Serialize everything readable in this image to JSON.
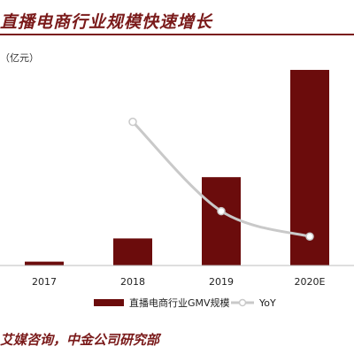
{
  "header": {
    "title": "直播电商行业规模快速增长",
    "unit_label": "（亿元）"
  },
  "footer": {
    "source": "艾媒咨询，中金公司研究部"
  },
  "colors": {
    "bar": "#6b0c0c",
    "line": "#c9c9c9",
    "accent": "#7a1a1a"
  },
  "chart_data": {
    "type": "bar",
    "categories": [
      "2017",
      "2018",
      "2019",
      "2020E"
    ],
    "series": [
      {
        "name": "直播电商行业GMV规模",
        "kind": "bar",
        "values": [
          190,
          1330,
          4340,
          9610
        ]
      },
      {
        "name": "YoY",
        "kind": "line",
        "values": [
          null,
          6.0,
          2.27,
          1.21
        ]
      }
    ],
    "ylim": [
      0,
      10000
    ],
    "y2lim": [
      0,
      8.5
    ],
    "legend": {
      "position": "bottom",
      "entries": [
        "直播电商行业GMV规模",
        "YoY"
      ]
    },
    "grid": false
  }
}
